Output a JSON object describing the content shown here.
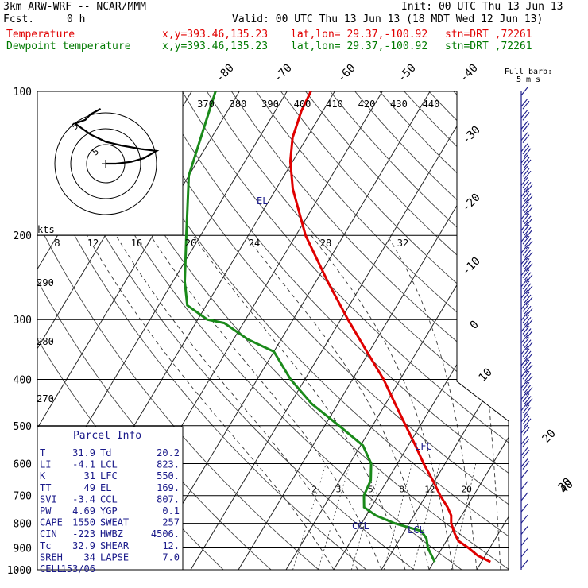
{
  "header": {
    "model": "3km ARW-WRF -- NCAR/MMM",
    "init": "Init: 00 UTC Thu 13 Jun 13",
    "fcst_label": "Fcst.",
    "fcst_value": "0 h",
    "valid": "Valid: 00 UTC Thu 13 Jun 13 (18 MDT Wed 12 Jun 13)",
    "temp_label": "Temperature",
    "dew_label": "Dewpoint temperature",
    "xy": "x,y=393.46,135.23",
    "latlon": "lat,lon= 29.37,-100.92",
    "stn": "stn=DRT ,72261",
    "barb_note_1": "Full barb:",
    "barb_note_2": "5 m s"
  },
  "colors": {
    "temperature": "#e00000",
    "dewpoint": "#1a8a1a",
    "barbs": "#1a1a8a",
    "hodo": "#000000"
  },
  "chart_data": {
    "type": "line",
    "pressure_levels": [
      1000,
      900,
      800,
      700,
      600,
      500,
      400,
      300,
      200,
      100
    ],
    "pressure_ticks": [
      "1000",
      "900",
      "800",
      "700",
      "600",
      "500",
      "400",
      "300",
      "200",
      "100"
    ],
    "temperature_ticks": [
      "-80",
      "-70",
      "-60",
      "-50",
      "-40",
      "-30",
      "-20",
      "-10",
      "0",
      "10",
      "20",
      "30",
      "40"
    ],
    "theta_ticks": [
      "370",
      "380",
      "390",
      "400",
      "410",
      "420",
      "430",
      "440"
    ],
    "theta_left_ticks": [
      "290",
      "280",
      "270"
    ],
    "mixing_ratio_ticks": [
      "2",
      "3",
      "5",
      "8",
      "12",
      "20"
    ],
    "hodo_ring_labels": [
      "kts",
      "8",
      "12",
      "16",
      "20",
      "24",
      "28",
      "32"
    ],
    "hodo_circle_labels": [
      "5",
      "5"
    ],
    "series": [
      {
        "name": "Temperature",
        "p": [
          963,
          935,
          900,
          870,
          840,
          800,
          770,
          740,
          700,
          650,
          600,
          550,
          500,
          450,
          400,
          350,
          300,
          250,
          200,
          180,
          160,
          140,
          125,
          110,
          100
        ],
        "t": [
          31.9,
          28.5,
          25.5,
          22.5,
          20.8,
          18.8,
          17.8,
          16.0,
          13.0,
          9.5,
          5.5,
          1.5,
          -3.0,
          -8.0,
          -13.5,
          -20.5,
          -28.5,
          -37.5,
          -48.0,
          -52.0,
          -56.5,
          -60.5,
          -63.0,
          -64.5,
          -65.0
        ]
      },
      {
        "name": "Dewpoint temperature",
        "p": [
          963,
          900,
          860,
          830,
          800,
          770,
          740,
          700,
          650,
          600,
          550,
          500,
          450,
          400,
          350,
          330,
          305,
          300,
          280,
          250,
          200,
          150,
          100
        ],
        "t": [
          20.2,
          17.0,
          15.5,
          13.5,
          7.0,
          2.0,
          -1.5,
          -3.0,
          -3.5,
          -5.5,
          -9.5,
          -17.0,
          -25.5,
          -33.0,
          -40.0,
          -47.0,
          -54.0,
          -58.0,
          -64.0,
          -67.5,
          -73.0,
          -80.0,
          -85.0
        ]
      }
    ],
    "annotations": {
      "el": "EL",
      "lfc": "LFC",
      "lcl": "LCL",
      "ccl": "CCL"
    },
    "hodograph": {
      "u": [
        0,
        4,
        10,
        15,
        20,
        14,
        6,
        0,
        -6,
        -10,
        -12,
        -8,
        -6,
        -2
      ],
      "v": [
        0,
        0,
        1,
        3,
        7,
        8,
        10,
        12,
        16,
        20,
        22,
        24,
        27,
        30
      ]
    },
    "wind_barbs": {
      "speed_kt": [
        6,
        8,
        10,
        10,
        12,
        14,
        15,
        16,
        18,
        20,
        22,
        24,
        26,
        28,
        30,
        30,
        32,
        32,
        30,
        30,
        28,
        28,
        26,
        25,
        24,
        22,
        20,
        18,
        15,
        14,
        12,
        10,
        8,
        8,
        6,
        6,
        5,
        5,
        4,
        4,
        4,
        5,
        6
      ]
    }
  },
  "parcel_info": {
    "title": "Parcel Info",
    "rows": [
      {
        "k1": "T",
        "v1": "31.9",
        "k2": "Td",
        "v2": "20.2"
      },
      {
        "k1": "LI",
        "v1": "-4.1",
        "k2": "LCL",
        "v2": "823."
      },
      {
        "k1": "K",
        "v1": "31",
        "k2": "LFC",
        "v2": "550."
      },
      {
        "k1": "TT",
        "v1": "49",
        "k2": "EL",
        "v2": "169."
      },
      {
        "k1": "SVI",
        "v1": "-3.4",
        "k2": "CCL",
        "v2": "807."
      },
      {
        "k1": "PW",
        "v1": "4.69",
        "k2": "YGP",
        "v2": "0.1"
      },
      {
        "k1": "CAPE",
        "v1": "1550",
        "k2": "SWEAT",
        "v2": "257"
      },
      {
        "k1": "CIN",
        "v1": "-223",
        "k2": "HWBZ",
        "v2": "4506."
      },
      {
        "k1": "Tc",
        "v1": "32.9",
        "k2": "SHEAR",
        "v2": "12."
      },
      {
        "k1": "SREH",
        "v1": "34",
        "k2": "LAPSE",
        "v2": "7.0"
      },
      {
        "k1": "CELL",
        "v1": "153/06",
        "k2": "",
        "v2": ""
      }
    ]
  }
}
